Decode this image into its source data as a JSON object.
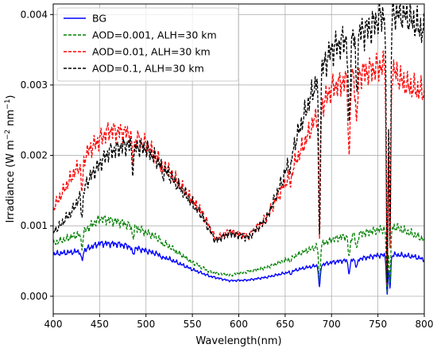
{
  "chart_data": {
    "type": "line",
    "title": "",
    "xlabel": "Wavelength(nm)",
    "ylabel_main": "Irradiance (W m",
    "ylabel_sup1": "−2",
    "ylabel_mid": " nm",
    "ylabel_sup2": "−1",
    "ylabel_end": ")",
    "xlim": [
      400,
      800
    ],
    "ylim": [
      -0.00025,
      0.00415
    ],
    "xticks": [
      400,
      450,
      500,
      550,
      600,
      650,
      700,
      750,
      800
    ],
    "xtick_labels": [
      "400",
      "450",
      "500",
      "550",
      "600",
      "650",
      "700",
      "750",
      "800"
    ],
    "yticks": [
      0,
      0.001,
      0.002,
      0.003,
      0.004
    ],
    "ytick_labels": [
      "0.000",
      "0.001",
      "0.002",
      "0.003",
      "0.004"
    ],
    "grid": true,
    "legend_position": "top-left",
    "absorption_features": [
      {
        "center": 431,
        "width": 1.5,
        "depth": 0.22
      },
      {
        "center": 486,
        "width": 1.5,
        "depth": 0.15
      },
      {
        "center": 518,
        "width": 1.5,
        "depth": 0.06
      },
      {
        "center": 656,
        "width": 1.5,
        "depth": 0.1
      },
      {
        "center": 687,
        "width": 1.3,
        "depth": 0.7
      },
      {
        "center": 719,
        "width": 1.5,
        "depth": 0.35
      },
      {
        "center": 727,
        "width": 1.5,
        "depth": 0.22
      },
      {
        "center": 760,
        "width": 1.3,
        "depth": 0.95
      },
      {
        "center": 763,
        "width": 1.2,
        "depth": 0.8
      }
    ],
    "series": [
      {
        "name": "BG",
        "color": "#0000ff",
        "dash": "solid",
        "x": [
          400,
          430,
          450,
          470,
          490,
          510,
          530,
          550,
          570,
          590,
          610,
          630,
          650,
          670,
          690,
          700,
          710,
          730,
          750,
          770,
          790,
          800
        ],
        "y": [
          0.0006,
          0.00064,
          0.00075,
          0.00074,
          0.00068,
          0.00061,
          0.0005,
          0.00038,
          0.00028,
          0.00022,
          0.00023,
          0.00027,
          0.00033,
          0.0004,
          0.00045,
          0.00048,
          0.0005,
          0.00053,
          0.00058,
          0.00059,
          0.00056,
          0.00052
        ]
      },
      {
        "name": "AOD=0.001, ALH=30 km",
        "color": "#008000",
        "dash": "dashed",
        "x": [
          400,
          430,
          450,
          470,
          490,
          510,
          530,
          550,
          570,
          590,
          610,
          630,
          650,
          670,
          690,
          700,
          710,
          730,
          750,
          770,
          790,
          800
        ],
        "y": [
          0.00075,
          0.00089,
          0.0011,
          0.00106,
          0.00097,
          0.00085,
          0.00066,
          0.00048,
          0.00034,
          0.0003,
          0.00035,
          0.00041,
          0.00051,
          0.00063,
          0.00074,
          0.0008,
          0.00084,
          0.00088,
          0.00094,
          0.00098,
          0.00087,
          0.0008
        ]
      },
      {
        "name": "AOD=0.01, ALH=30 km",
        "color": "#ff0000",
        "dash": "dashed",
        "x": [
          400,
          420,
          440,
          460,
          480,
          500,
          520,
          540,
          560,
          575,
          590,
          610,
          630,
          650,
          670,
          685,
          700,
          720,
          740,
          760,
          780,
          800
        ],
        "y": [
          0.00125,
          0.0017,
          0.0021,
          0.00235,
          0.00232,
          0.00215,
          0.00185,
          0.00152,
          0.0012,
          0.00082,
          0.00092,
          0.00085,
          0.00112,
          0.0016,
          0.00215,
          0.0026,
          0.00295,
          0.0031,
          0.0032,
          0.0033,
          0.003,
          0.0029
        ]
      },
      {
        "name": "AOD=0.1, ALH=30 km",
        "color": "#000000",
        "dash": "dashed",
        "x": [
          400,
          420,
          440,
          460,
          480,
          500,
          520,
          540,
          560,
          575,
          590,
          610,
          630,
          650,
          670,
          685,
          700,
          720,
          740,
          760,
          780,
          800
        ],
        "y": [
          0.0009,
          0.0012,
          0.0017,
          0.00205,
          0.00215,
          0.0021,
          0.0018,
          0.00148,
          0.00115,
          0.00078,
          0.0009,
          0.00083,
          0.0011,
          0.00175,
          0.00255,
          0.0031,
          0.0035,
          0.0037,
          0.0038,
          0.00405,
          0.004,
          0.00375
        ]
      }
    ]
  }
}
